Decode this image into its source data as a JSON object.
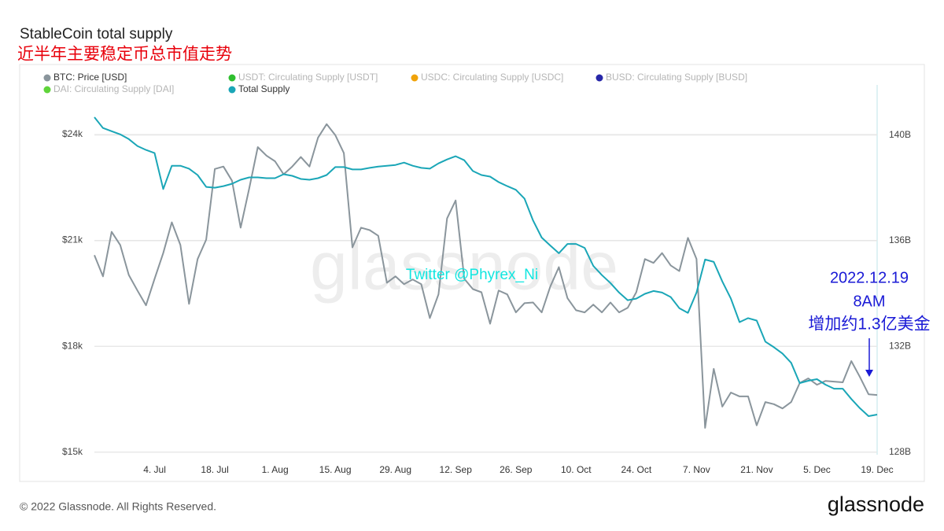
{
  "chart_data": {
    "type": "line",
    "title": "StableCoin total supply",
    "subtitle": "近半年主要稳定币总市值走势",
    "watermark": "glassnode",
    "annotations": [
      "Twitter @Phyrex_Ni",
      "2022.12.19",
      "8AM",
      "增加约1.3亿美金"
    ],
    "legend": "top-left",
    "grid": true,
    "categories": [
      null,
      null,
      null,
      null,
      null,
      null,
      null,
      "4. Jul",
      null,
      null,
      null,
      null,
      null,
      null,
      "18. Jul",
      null,
      null,
      null,
      null,
      null,
      null,
      "1. Aug",
      null,
      null,
      null,
      null,
      null,
      null,
      "15. Aug",
      null,
      null,
      null,
      null,
      null,
      null,
      "29. Aug",
      null,
      null,
      null,
      null,
      null,
      null,
      "12. Sep",
      null,
      null,
      null,
      null,
      null,
      null,
      "26. Sep",
      null,
      null,
      null,
      null,
      null,
      null,
      "10. Oct",
      null,
      null,
      null,
      null,
      null,
      null,
      "24. Oct",
      null,
      null,
      null,
      null,
      null,
      null,
      "7. Nov",
      null,
      null,
      null,
      null,
      null,
      null,
      "21. Nov",
      null,
      null,
      null,
      null,
      null,
      null,
      "5. Dec",
      null,
      null,
      null,
      null,
      null,
      null,
      "19. Dec"
    ],
    "series": [
      {
        "name": "BTC: Price [USD]",
        "color": "#8a959c",
        "axis": "y",
        "values": [
          20580,
          19980,
          21240,
          20870,
          20020,
          19580,
          19160,
          19910,
          20640,
          21510,
          20870,
          19200,
          20470,
          21020,
          23020,
          23090,
          22690,
          21360,
          22470,
          23640,
          23400,
          23240,
          22870,
          23090,
          23360,
          23090,
          23910,
          24290,
          23980,
          23470,
          20800,
          21360,
          21290,
          21130,
          19800,
          19980,
          19760,
          19890,
          19760,
          18800,
          19470,
          21620,
          22130,
          19910,
          19620,
          19530,
          18640,
          19580,
          19470,
          18960,
          19220,
          19240,
          18960,
          19690,
          20240,
          19360,
          19020,
          18960,
          19180,
          18960,
          19240,
          18960,
          19090,
          19530,
          20470,
          20360,
          20640,
          20290,
          20130,
          21070,
          20470,
          15690,
          17360,
          16290,
          16690,
          16580,
          16580,
          15760,
          16420,
          16360,
          16240,
          16420,
          16960,
          17090,
          16910,
          17020,
          17000,
          16980,
          17580,
          17130,
          16640,
          16620
        ]
      },
      {
        "name": "USDT: Circulating Supply [USDT]",
        "color": "#2fbf2f",
        "visible": false
      },
      {
        "name": "USDC: Circulating Supply [USDC]",
        "color": "#f0a30a",
        "visible": false
      },
      {
        "name": "BUSD: Circulating Supply [BUSD]",
        "color": "#2727a8",
        "visible": false
      },
      {
        "name": "DAI: Circulating Supply [DAI]",
        "color": "#5fd43a",
        "visible": false
      },
      {
        "name": "Total Supply",
        "color": "#1aa6b7",
        "axis": "y2",
        "values": [
          140.68,
          140.27,
          140.15,
          140.03,
          139.85,
          139.59,
          139.44,
          139.32,
          137.96,
          138.84,
          138.84,
          138.73,
          138.49,
          138.04,
          138.01,
          138.07,
          138.16,
          138.31,
          138.4,
          138.4,
          138.37,
          138.37,
          138.52,
          138.46,
          138.34,
          138.31,
          138.37,
          138.49,
          138.79,
          138.79,
          138.7,
          138.7,
          138.76,
          138.81,
          138.84,
          138.87,
          138.96,
          138.84,
          138.76,
          138.73,
          138.93,
          139.08,
          139.2,
          139.05,
          138.64,
          138.49,
          138.43,
          138.22,
          138.07,
          137.93,
          137.6,
          136.77,
          136.12,
          135.82,
          135.53,
          135.88,
          135.88,
          135.73,
          135.05,
          134.7,
          134.4,
          134.04,
          133.75,
          133.81,
          133.99,
          134.1,
          134.04,
          133.87,
          133.45,
          133.27,
          134.04,
          135.29,
          135.2,
          134.46,
          133.81,
          132.92,
          133.07,
          132.98,
          132.18,
          131.97,
          131.73,
          131.38,
          130.61,
          130.7,
          130.76,
          130.55,
          130.4,
          130.4,
          130.01,
          129.66,
          129.36,
          129.42
        ]
      }
    ],
    "ylim": [
      14930,
      25400
    ],
    "yticks": [
      {
        "value": 15000,
        "label": "$15k"
      },
      {
        "value": 18000,
        "label": "$18k"
      },
      {
        "value": 21000,
        "label": "$21k"
      },
      {
        "value": 24000,
        "label": "$24k"
      }
    ],
    "y2lim": [
      127.9,
      141.9
    ],
    "y2ticks": [
      {
        "value": 128,
        "label": "128B"
      },
      {
        "value": 132,
        "label": "132B"
      },
      {
        "value": 136,
        "label": "136B"
      },
      {
        "value": 140,
        "label": "140B"
      }
    ]
  },
  "footer": {
    "copyright": "© 2022 Glassnode. All Rights Reserved.",
    "logo": "glassnode"
  }
}
